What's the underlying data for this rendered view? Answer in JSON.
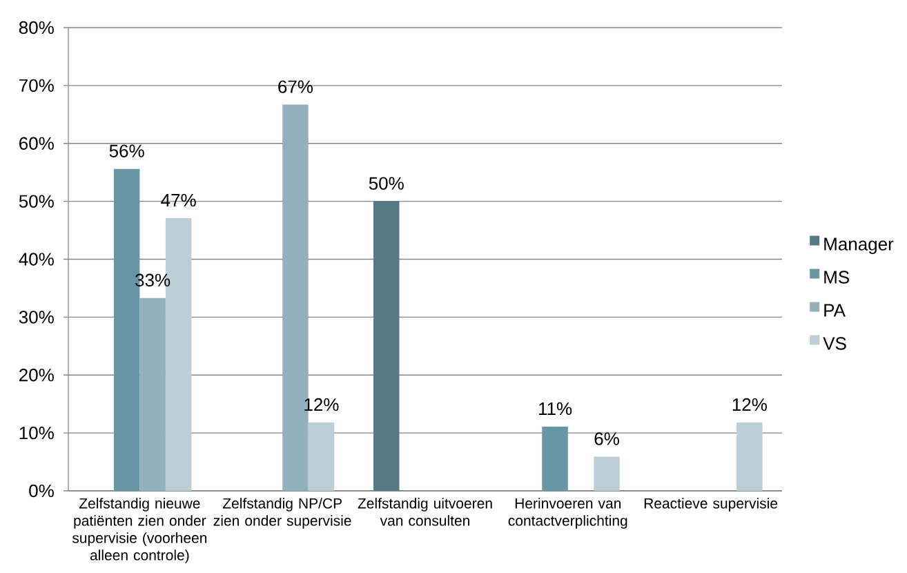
{
  "chart_data": {
    "type": "bar",
    "categories": [
      "Zelfstandig nieuwe patiënten zien onder supervisie (voorheen alleen controle)",
      "Zelfstandig NP/CP zien onder supervisie",
      "Zelfstandig uitvoeren van consulten",
      "Herinvoeren van contactverplichting",
      "Reactieve supervisie"
    ],
    "series": [
      {
        "name": "Manager",
        "color": "#557a87",
        "values": [
          null,
          null,
          50,
          null,
          null
        ],
        "value_labels": [
          null,
          null,
          "50%",
          null,
          null
        ]
      },
      {
        "name": "MS",
        "color": "#6796a4",
        "values": [
          55.6,
          null,
          null,
          11.1,
          null
        ],
        "value_labels": [
          "56%",
          null,
          null,
          "11%",
          null
        ]
      },
      {
        "name": "PA",
        "color": "#92b1bd",
        "values": [
          33.3,
          66.7,
          null,
          null,
          null
        ],
        "value_labels": [
          "33%",
          "67%",
          null,
          null,
          null
        ]
      },
      {
        "name": "VS",
        "color": "#bccfd7",
        "values": [
          47.1,
          11.8,
          null,
          5.9,
          11.8
        ],
        "value_labels": [
          "47%",
          "12%",
          null,
          "6%",
          "12%"
        ]
      }
    ],
    "ylim": [
      0,
      80
    ],
    "yticks": [
      {
        "value": 0,
        "label": "0%"
      },
      {
        "value": 10,
        "label": "10%"
      },
      {
        "value": 20,
        "label": "20%"
      },
      {
        "value": 30,
        "label": "30%"
      },
      {
        "value": 40,
        "label": "40%"
      },
      {
        "value": 50,
        "label": "50%"
      },
      {
        "value": 60,
        "label": "60%"
      },
      {
        "value": 70,
        "label": "70%"
      },
      {
        "value": 80,
        "label": "80%"
      }
    ],
    "grid": "y",
    "legend": "right"
  }
}
